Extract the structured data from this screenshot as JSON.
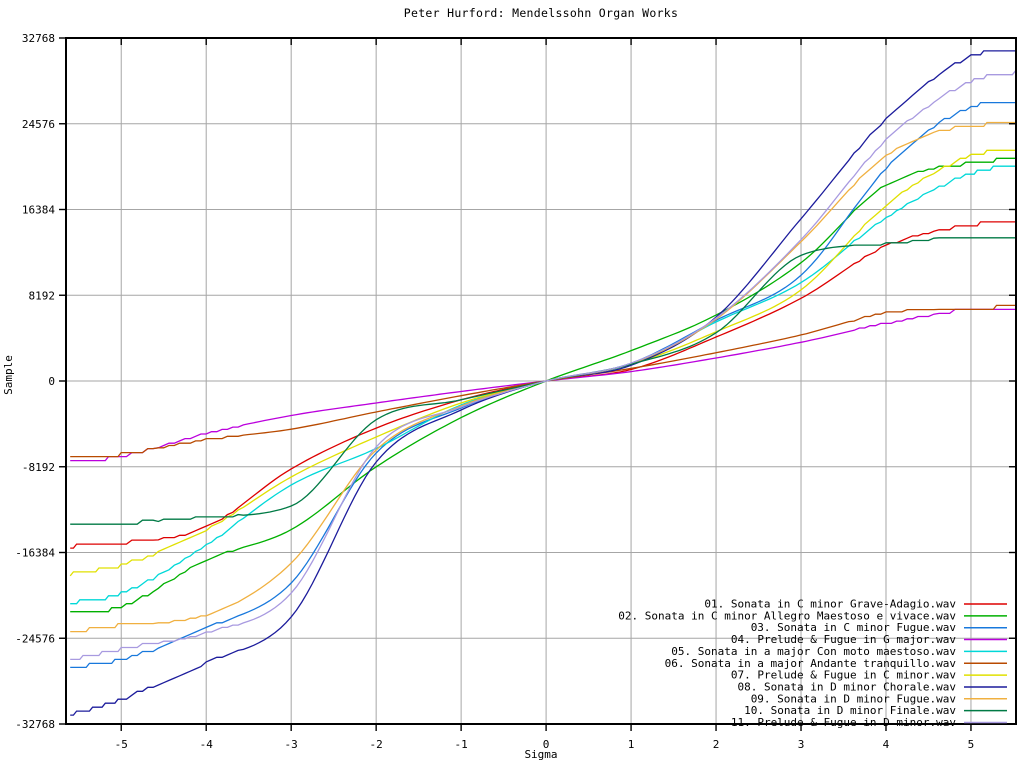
{
  "window": {
    "background": "#ffffff",
    "grid_color": "#a6a6a6",
    "border_color": "#000000",
    "text_color": "#000000"
  },
  "chart_data": {
    "type": "line",
    "title": "Peter Hurford: Mendelssohn Organ Works",
    "xlabel": "Sigma",
    "ylabel": "Sample",
    "xlim": [
      -5.65,
      5.53
    ],
    "ylim": [
      -32768,
      32768
    ],
    "xticks": [
      -5,
      -4,
      -3,
      -2,
      -1,
      0,
      1,
      2,
      3,
      4,
      5
    ],
    "yticks": [
      -32768,
      -24576,
      -16384,
      -8192,
      0,
      8192,
      16384,
      24576,
      32768
    ],
    "grid": true,
    "legend_position": "bottom-right-inside",
    "x": [
      -5.6,
      -5,
      -4,
      -3,
      -2,
      -1,
      0,
      1,
      2,
      3,
      4,
      5,
      5.6
    ],
    "series": [
      {
        "name": "01. Sonata in C minor Grave-Adagio.wav",
        "color": "#dd0000",
        "values": [
          -15800,
          -15500,
          -13950,
          -8400,
          -4500,
          -1800,
          0,
          1100,
          4200,
          7900,
          12900,
          14900,
          15200
        ]
      },
      {
        "name": "02. Sonata in C minor Allegro Maestoso e vivace.wav",
        "color": "#00b000",
        "values": [
          -22200,
          -21600,
          -17100,
          -14200,
          -8200,
          -3500,
          0,
          2900,
          6300,
          11300,
          18700,
          20800,
          21300
        ]
      },
      {
        "name": "03. Sonata in C minor Fugue.wav",
        "color": "#1878dc",
        "values": [
          -27400,
          -26600,
          -23600,
          -19300,
          -6880,
          -2580,
          0,
          1700,
          5800,
          10100,
          20300,
          26200,
          26800
        ]
      },
      {
        "name": "04. Prelude & Fugue in G major.wav",
        "color": "#bb00dd",
        "values": [
          -7740,
          -7200,
          -5000,
          -3300,
          -2100,
          -1000,
          0,
          900,
          2200,
          3700,
          5500,
          6850,
          7050
        ]
      },
      {
        "name": "05. Sonata in a major Con moto maestoso.wav",
        "color": "#00d8d8",
        "values": [
          -21200,
          -20300,
          -15670,
          -9940,
          -6450,
          -2290,
          0,
          1550,
          5640,
          9400,
          15600,
          19800,
          20800
        ]
      },
      {
        "name": "06. Sonata in a major Andante tranquillo.wav",
        "color": "#b84a00",
        "values": [
          -7260,
          -7000,
          -5600,
          -4600,
          -2960,
          -1400,
          0,
          1200,
          2700,
          4400,
          6500,
          6950,
          7100
        ]
      },
      {
        "name": "07. Prelude & Fugue in C minor.wav",
        "color": "#e0e000",
        "values": [
          -18440,
          -17600,
          -14230,
          -9170,
          -5350,
          -2100,
          0,
          1600,
          4700,
          8700,
          16800,
          21500,
          22300
        ]
      },
      {
        "name": "08. Sonata in D minor Chorale.wav",
        "color": "#1c1c9c",
        "values": [
          -31900,
          -30400,
          -26940,
          -22540,
          -7740,
          -2770,
          0,
          1500,
          6100,
          15500,
          25000,
          31000,
          31800
        ]
      },
      {
        "name": "09. Sonata in D minor Fugue.wav",
        "color": "#f0b040",
        "values": [
          -23980,
          -23300,
          -22350,
          -17400,
          -6590,
          -2390,
          0,
          1650,
          5900,
          13300,
          21500,
          24400,
          24600
        ]
      },
      {
        "name": "10. Sonata in D minor Finale.wav",
        "color": "#007a45",
        "values": [
          -13850,
          -13600,
          -12990,
          -11940,
          -3700,
          -1800,
          0,
          1600,
          4600,
          12000,
          13100,
          13800,
          13850
        ]
      },
      {
        "name": "11. Prelude & Fugue in D minor.wav",
        "color": "#a89ae0",
        "values": [
          -26650,
          -25600,
          -24070,
          -20260,
          -6300,
          -2480,
          0,
          1700,
          6000,
          13500,
          23000,
          28600,
          29600
        ]
      }
    ]
  }
}
